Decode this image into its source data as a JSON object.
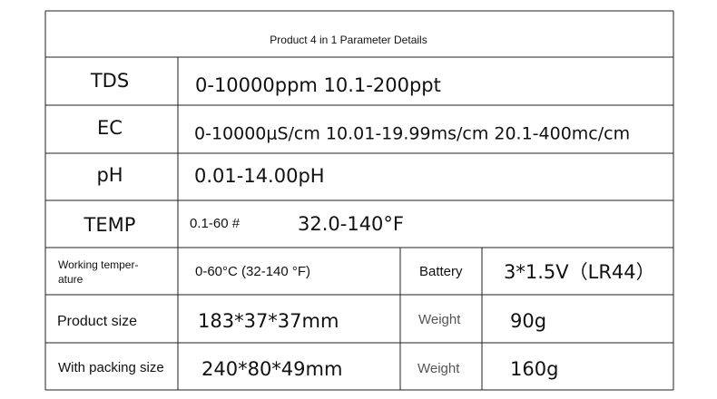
{
  "title": "Product 4 in 1 Parameter Details",
  "rows": [
    {
      "label": "TDS",
      "value": "0-10000ppm  10.1-200ppt"
    },
    {
      "label": "EC",
      "value": "0-10000μS/cm  10.01-19.99ms/cm 20.1-400mc/cm"
    },
    {
      "label": "pH",
      "value": "0.01-14.00pH"
    },
    {
      "label": "TEMP",
      "value": "0.1-60 #",
      "value2": "32.0-140°F"
    },
    {
      "label_lines": [
        "Working temper-",
        "ature"
      ],
      "value": "0-60°C (32-140 °F)",
      "label2": "Battery",
      "value2": "3*1.5V（LR44）"
    },
    {
      "label": "Product size",
      "value": "183*37*37mm",
      "label2": "Weight",
      "value2": "90g"
    },
    {
      "label": "With packing size",
      "value": "240*80*49mm",
      "label2": "Weight",
      "value2": "160g"
    }
  ]
}
